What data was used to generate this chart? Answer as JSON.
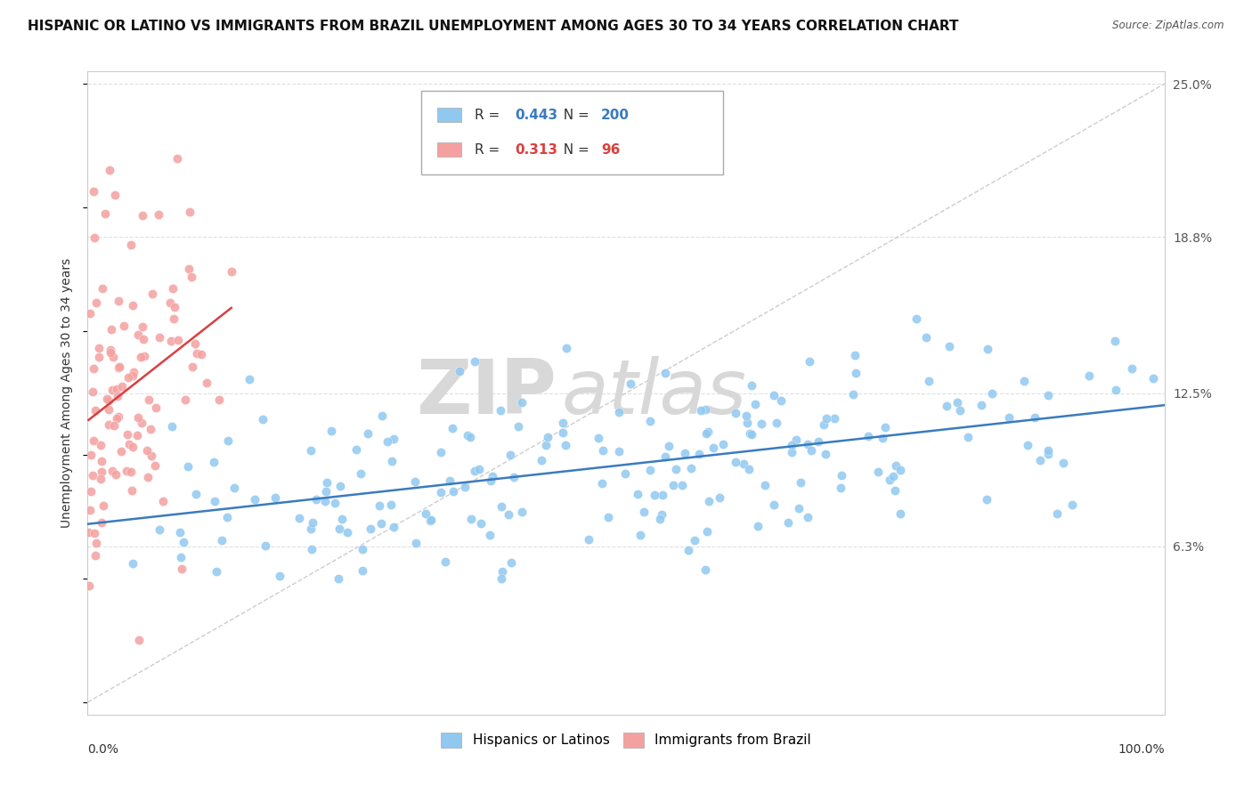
{
  "title": "HISPANIC OR LATINO VS IMMIGRANTS FROM BRAZIL UNEMPLOYMENT AMONG AGES 30 TO 34 YEARS CORRELATION CHART",
  "source": "Source: ZipAtlas.com",
  "ylabel": "Unemployment Among Ages 30 to 34 years",
  "xlim": [
    0,
    1.0
  ],
  "ylim": [
    -0.005,
    0.255
  ],
  "xtick_labels": [
    "0.0%",
    "100.0%"
  ],
  "ytick_labels": [
    "6.3%",
    "12.5%",
    "18.8%",
    "25.0%"
  ],
  "ytick_values": [
    0.063,
    0.125,
    0.188,
    0.25
  ],
  "watermark_zip": "ZIP",
  "watermark_atlas": "atlas",
  "legend_blue_label": "Hispanics or Latinos",
  "legend_pink_label": "Immigrants from Brazil",
  "blue_R": 0.443,
  "blue_N": 200,
  "pink_R": 0.313,
  "pink_N": 96,
  "blue_color": "#90c8f0",
  "pink_color": "#f4a0a0",
  "blue_line_color": "#3a7bbf",
  "pink_line_color": "#d94040",
  "diagonal_color": "#c8c8c8",
  "background_color": "#ffffff",
  "grid_color": "#e0e0e0",
  "title_fontsize": 11,
  "seed": 42
}
